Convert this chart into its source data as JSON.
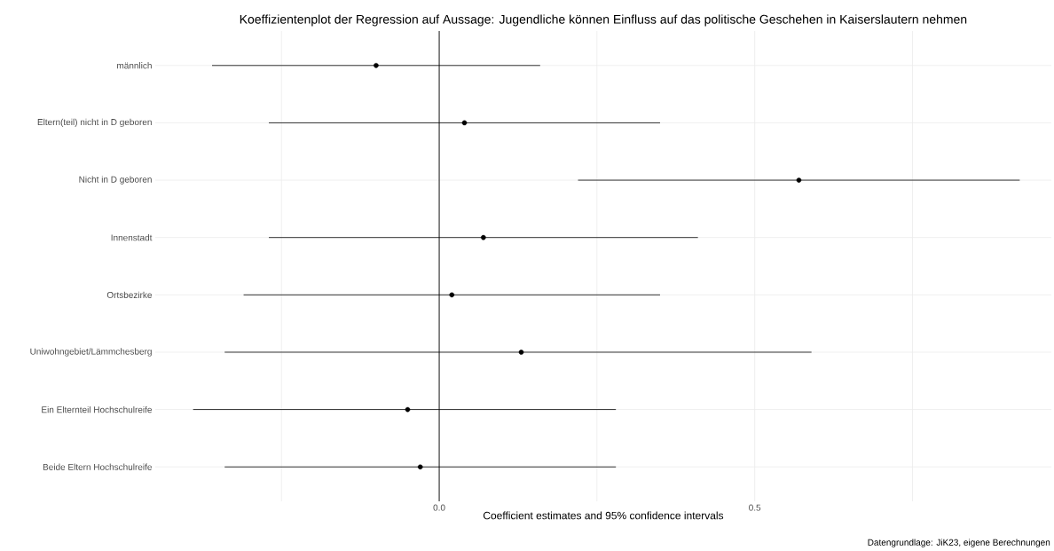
{
  "chart_data": {
    "type": "scatter",
    "orientation": "horizontal",
    "title": "Koeffizientenplot der Regression auf Aussage: Jugendliche können Einfluss auf das politische Geschehen in Kaiserslautern nehmen",
    "xlabel": "Coefficient estimates and 95% confidence intervals",
    "annotations": [
      "Datengrundlage: JiK23, eigene Berechnungen"
    ],
    "categories": [
      "männlich",
      "Eltern(teil) nicht in D geboren",
      "Nicht in D geboren",
      "Innenstadt",
      "Ortsbezirke",
      "Uniwohngebiet/Lämmchesberg",
      "Ein Elternteil Hochschulreife",
      "Beide Eltern Hochschulreife"
    ],
    "values": [
      -0.1,
      0.04,
      0.57,
      0.07,
      0.02,
      0.13,
      -0.05,
      -0.03
    ],
    "errors": [
      [
        -0.36,
        0.16
      ],
      [
        -0.27,
        0.35
      ],
      [
        0.22,
        0.92
      ],
      [
        -0.27,
        0.41
      ],
      [
        -0.31,
        0.35
      ],
      [
        -0.34,
        0.59
      ],
      [
        -0.39,
        0.28
      ],
      [
        -0.34,
        0.28
      ]
    ],
    "color": "#000000",
    "marker": "circle",
    "grid": true,
    "xlim": [
      -0.45,
      0.97
    ],
    "xticks": [
      {
        "value": -0.25,
        "label": null
      },
      {
        "value": 0,
        "label": "0.0"
      },
      {
        "value": 0.25,
        "label": null
      },
      {
        "value": 0.5,
        "label": "0.5"
      },
      {
        "value": 0.75,
        "label": null
      }
    ],
    "ref_lines": [
      {
        "axis": "x",
        "value": 0,
        "color": "#000000"
      }
    ]
  }
}
